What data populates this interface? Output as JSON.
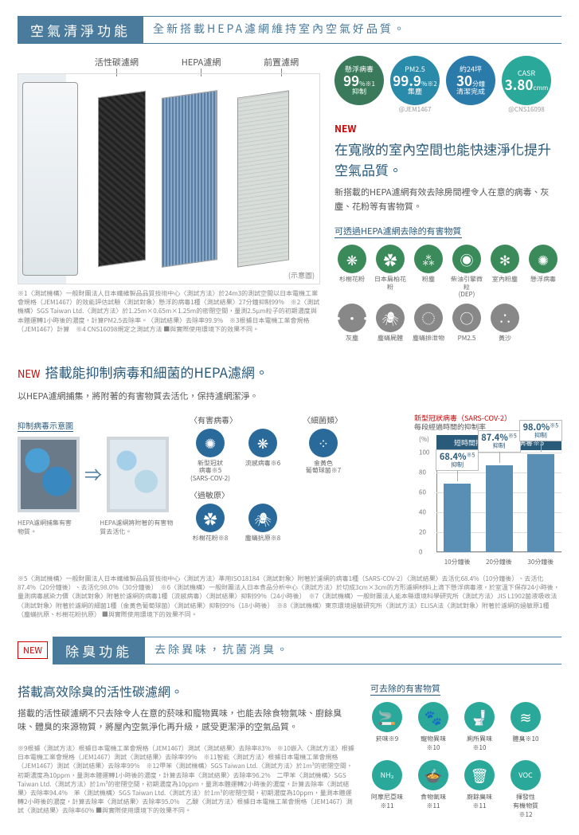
{
  "section1": {
    "title": "空氣清淨功能",
    "subtitle": "全新搭載HEPA濾網維持室內空氣好品質。",
    "filter_labels": [
      "活性碳濾網",
      "HEPA濾網",
      "前置濾網"
    ],
    "diagram_note": "(示意圖)",
    "fineprint": "※1〈測試機構〉一般財團法人日本纖維製品品質技術中心〈測試方法〉於24m3的測試空間以日本電機工業會規格（JEM1467）的效能評估試驗〈測試對象〉懸浮的病毒1種〈測試結果〉27分鐘抑制99%　※2〈測試機構〉SGS Taiwan Ltd.〈測試方法〉於1.25m×0.65m×1.25m的密閉空間，量測2.5μm粒子的初期濃度與本體運轉1小時後的濃度，計算PM2.5去除率。〈測試結果〉去除率99.9%　※3根據日本電機工業會規格（JEM1467）計算　※4 CNS16098規定之測試方法\n■與實際使用環境下的效果不同。",
    "badges": [
      {
        "top": "懸浮病毒",
        "big": "99",
        "unit": "%※1",
        "bot": "抑制",
        "color": "#3a7a5a",
        "note": ""
      },
      {
        "top": "PM2.5",
        "big": "99.9",
        "unit": "%※2",
        "bot": "集塵",
        "color": "#2a8aaa",
        "note": "@JEM1467"
      },
      {
        "top": "約24坪",
        "mid": "約",
        "big": "30",
        "unit": "分鐘",
        "bot": "清潔完成",
        "color": "#2a7aaa",
        "note": ""
      },
      {
        "top": "CASR",
        "big": "3.80",
        "unit": "cmm",
        "bot": "",
        "color": "#2aa89a",
        "note": "@CNS16098"
      }
    ],
    "new": "NEW",
    "headline": "在寬敞的室內空間也能快速淨化提升空氣品質。",
    "body": "新搭載的HEPA濾網有效去除房間裡令人在意的病毒、灰塵、花粉等有害物質。",
    "sub_head": "可透過HEPA濾網去除的有害物質",
    "icons": [
      {
        "lbl": "杉樹花粉",
        "glyph": "❋",
        "color": "#3a8a5a"
      },
      {
        "lbl": "日本扁柏花粉",
        "glyph": "✿",
        "color": "#3a8a5a"
      },
      {
        "lbl": "粉塵",
        "glyph": "⁂",
        "color": "#3a8a5a"
      },
      {
        "lbl": "柴油引擎微粒\n(DEP)",
        "glyph": "◉",
        "color": "#3a8a5a"
      },
      {
        "lbl": "室內粉塵",
        "glyph": "✻",
        "color": "#3a8a5a"
      },
      {
        "lbl": "懸浮病毒",
        "glyph": "✺",
        "color": "#3a8a5a"
      },
      {
        "lbl": "灰塵",
        "glyph": "•••",
        "color": "#888888"
      },
      {
        "lbl": "塵蟎屍體",
        "glyph": "🕷",
        "color": "#888888"
      },
      {
        "lbl": "塵蟎排泄物",
        "glyph": "◌",
        "color": "#888888"
      },
      {
        "lbl": "PM2.5",
        "glyph": "○",
        "color": "#888888"
      },
      {
        "lbl": "黃沙",
        "glyph": "∴",
        "color": "#888888"
      }
    ]
  },
  "section2": {
    "new": "NEW",
    "title": "搭載能抑制病毒和細菌的HEPA濾網。",
    "sub": "以HEPA濾網捕集，將附著的有害物質去活化，保持濾網潔淨。",
    "demo_head": "抑制病毒示意圖",
    "demo_cap_before": "HEPA濾網捕集有害物質。",
    "demo_cap_after": "HEPA濾網將附著的有害物質去活化。",
    "targets": [
      {
        "head": "〈有害病毒〉",
        "items": [
          {
            "lbl": "新型冠狀\n病毒※5\n(SARS-COV-2)",
            "glyph": "✺",
            "color": "#2a6a9a"
          },
          {
            "lbl": "流感病毒※6",
            "glyph": "❋",
            "color": "#2a6a9a"
          }
        ]
      },
      {
        "head": "〈細菌類〉",
        "items": [
          {
            "lbl": "金黃色\n葡萄球菌※7",
            "glyph": "⁘",
            "color": "#2a6a9a"
          }
        ]
      },
      {
        "head": "〈過敏原〉",
        "items": [
          {
            "lbl": "杉樹花粉※8",
            "glyph": "✿",
            "color": "#2a6a9a"
          },
          {
            "lbl": "塵蟎抗原※8",
            "glyph": "🕷",
            "color": "#2a6a9a"
          }
        ]
      }
    ],
    "chart": {
      "title_prefix": "新型冠狀病毒（SARS-COV-2）",
      "title_line2": "每段經過時間的抑制率",
      "yunit": "(%)",
      "banner": "短時間抑制新型冠狀病毒※5",
      "ymax": 100,
      "ytick_step": 20,
      "bars": [
        {
          "x": "10分鐘後",
          "val": 68.4,
          "cap_val": "68.4%",
          "cap_sub": "抑制"
        },
        {
          "x": "20分鐘後",
          "val": 87.4,
          "cap_val": "87.4%",
          "cap_sub": "抑制"
        },
        {
          "x": "30分鐘後",
          "val": 98.0,
          "cap_val": "98.0%",
          "cap_sub": "抑制"
        }
      ],
      "bar_color": "#5a8fb5",
      "banner_color": "#2a5a7a"
    },
    "fineprint": "※5〈測試機構〉一般財團法人日本纖維製品品質技術中心〈測試方法〉準用ISO18184〈測試對象〉附著於濾網的病毒1種（SARS-COV-2）〈測試結果〉去活化68.4%（10分鐘後）、去活化87.4%（20分鐘後）、去活化98.0%（30分鐘後）　※6〈測試機構〉一般財團法人日本食品分析中心〈測試方法〉於切成3cm×3cm的方形濾網材料上滴下懸浮病毒液，於室溫下保存24小時後，量測病毒感染力價〈測試對象〉附著於濾網的病毒1種（流感病毒）〈測試結果〉抑制99%（24小時後）　※7〈測試機構〉一般財團法人能本縣環境科學研究所〈測試方法〉JIS L1902菌液吸收法〈測試對象〉附著於濾網的細菌1種（金黃色葡萄球菌）〈測試結果〉抑制99%（18小時後）　※8〈測試機構〉東京環境過敏研究所〈測試方法〉ELISA法〈測試對象〉附著於濾網的過敏原1種（塵蟎抗原、杉樹花粉抗原）\n■與實際使用環境下的效果不同。"
  },
  "section3": {
    "tag": "NEW",
    "title": "除臭功能",
    "subtitle": "去除異味，抗菌消臭。",
    "head": "搭載高效除臭的活性碳濾網。",
    "body": "搭載的活性碳濾網不只去除令人在意的菸味和寵物異味，也能去除食物氣味、廚餘臭味、體臭的來源物質，將屋內空氣淨化再升級，感受更潔淨的空氣品質。",
    "sub_head": "可去除的有害物質",
    "icons": [
      {
        "lbl": "菸味※9",
        "glyph": "🚬"
      },
      {
        "lbl": "寵物異味※10",
        "glyph": "🐾"
      },
      {
        "lbl": "廁所異味※10",
        "glyph": "🚽"
      },
      {
        "lbl": "體臭※10",
        "glyph": "≋"
      },
      {
        "lbl": "阿摩尼亞味※11",
        "glyph": "NH₃"
      },
      {
        "lbl": "食物氣味※11",
        "glyph": "🍲"
      },
      {
        "lbl": "廚餘臭味※11",
        "glyph": "🗑"
      },
      {
        "lbl": "揮發性\n有機物質※12",
        "glyph": "VOC"
      }
    ],
    "fineprint": "※9根據〈測試方法〉根據日本電機工業會規格（JEM1467）測試〈測試結果〉去除率83%　※10嵌入〈測試方法〉根據日本電機工業會規格（JEM1467）測試〈測試結果〉去除率99%　※11智能〈測試方法〉根據日本電機工業會規格（JEM1467）測試〈測試結果〉去除率99%　※12甲苯〈測試機構〉SGS Taiwan Ltd.〈測試方法〉於1m³的密閉空間，初期濃度為10ppm，量測本體運轉1小時後的濃度，計算去除率〈測試結果〉去除率96.2%　二甲苯〈測試機構〉SGS Taiwan Ltd.〈測試方法〉於1m³的密閉空間，初期濃度為10ppm，量測本體運轉2小時後的濃度，計算去除率〈測試結果〉去除率94.4%　苯〈測試機構〉SGS Taiwan Ltd.〈測試方法〉於1m³的密閉空間，初期濃度為10ppm，量測本體運轉2小時後的濃度，計算去除率〈測試結果〉去除率95.0%　乙酸〈測試方法〉根據日本電機工業會規格（JEM1467）測試〈測試結果〉去除率60%\n■與實際使用環境下的效果不同。"
  }
}
